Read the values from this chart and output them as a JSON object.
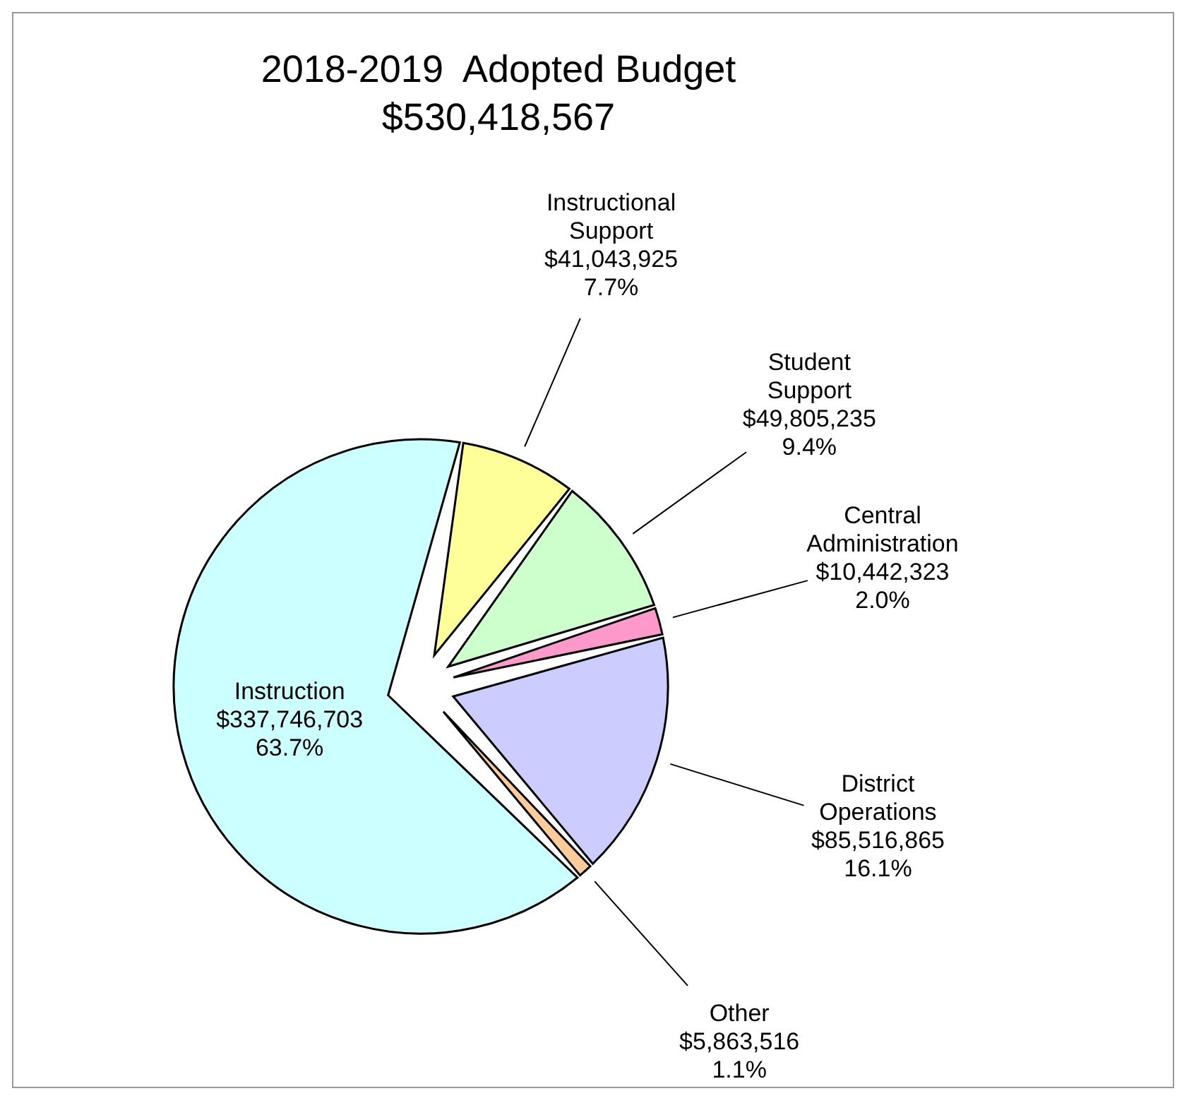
{
  "chart_data": {
    "type": "pie",
    "title": "2018-2019  Adopted Budget",
    "subtitle": "$530,418,567",
    "categories": [
      "Instructional Support",
      "Student Support",
      "Central Administration",
      "District Operations",
      "Other",
      "Instruction"
    ],
    "values": [
      41043925,
      49805235,
      10442323,
      85516865,
      5863516,
      337746703
    ],
    "value_labels": [
      "$41,043,925\n7.7%",
      "$49,805,235\n9.4%",
      "$10,442,323\n2.0%",
      "$85,516,865\n16.1%",
      "$5,863,516\n1.1%",
      "$337,746,703\n63.7%"
    ],
    "colors": [
      "#ffff99",
      "#ccffcc",
      "#ff99cc",
      "#ccccff",
      "#ffcc99",
      "#ccffff"
    ]
  }
}
